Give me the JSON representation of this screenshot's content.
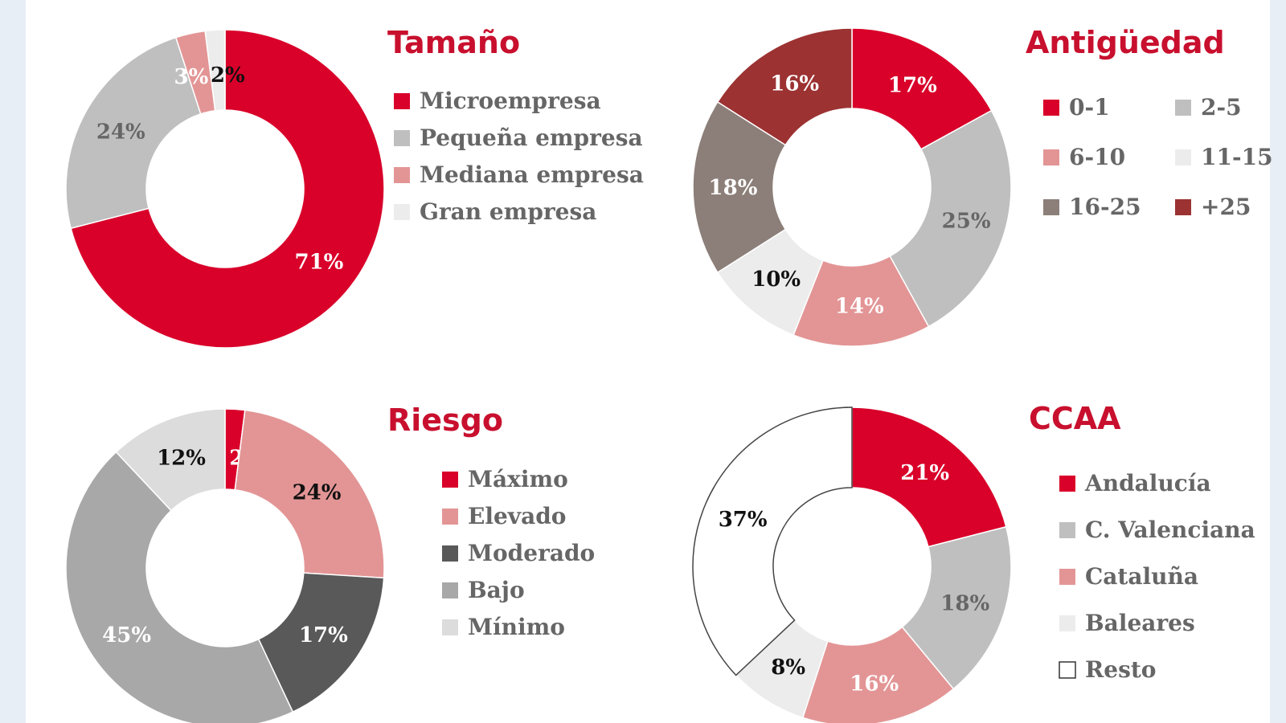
{
  "colors": {
    "red": "#d9002a",
    "lightgray": "#bfbfbf",
    "pink": "#e39595",
    "verylight": "#ececec",
    "taupe": "#8c7f79",
    "darkred": "#9c3232",
    "darkgray": "#595959",
    "midgray": "#a8a8a8",
    "minimo": "#dcdcdc",
    "white": "#ffffff",
    "title": "#c8102e",
    "legendtext": "#666666"
  },
  "chart_data": [
    {
      "id": "tamano",
      "type": "pie",
      "title": "Tamaño",
      "categories": [
        "Microempresa",
        "Pequeña empresa",
        "Mediana empresa",
        "Gran empresa"
      ],
      "values": [
        71,
        24,
        3,
        2
      ],
      "labels": [
        "71%",
        "24%",
        "3%",
        "2%"
      ],
      "color_keys": [
        "red",
        "lightgray",
        "pink",
        "verylight"
      ],
      "label_color_keys": [
        "white",
        "legendtext",
        "white",
        "black"
      ],
      "legend_layout": "single-column"
    },
    {
      "id": "antiguedad",
      "type": "pie",
      "title": "Antigüedad",
      "categories": [
        "0-1",
        "2-5",
        "6-10",
        "11-15",
        "16-25",
        "+25"
      ],
      "values": [
        17,
        25,
        14,
        10,
        18,
        16
      ],
      "labels": [
        "17%",
        "25%",
        "14%",
        "10%",
        "18%",
        "16%"
      ],
      "color_keys": [
        "red",
        "lightgray",
        "pink",
        "verylight",
        "taupe",
        "darkred"
      ],
      "label_color_keys": [
        "white",
        "legendtext",
        "white",
        "black",
        "white",
        "white"
      ],
      "legend_layout": "two-column"
    },
    {
      "id": "riesgo",
      "type": "pie",
      "title": "Riesgo",
      "categories": [
        "Máximo",
        "Elevado",
        "Moderado",
        "Bajo",
        "Mínimo"
      ],
      "values": [
        2,
        24,
        17,
        45,
        12
      ],
      "labels": [
        "2%",
        "24%",
        "17%",
        "45%",
        "12%"
      ],
      "color_keys": [
        "red",
        "pink",
        "darkgray",
        "midgray",
        "minimo"
      ],
      "label_color_keys": [
        "white",
        "black",
        "white",
        "white",
        "black"
      ],
      "legend_layout": "single-column"
    },
    {
      "id": "ccaa",
      "type": "pie",
      "title": "CCAA",
      "categories": [
        "Andalucía",
        "C. Valenciana",
        "Cataluña",
        "Baleares",
        "Resto"
      ],
      "values": [
        21,
        18,
        16,
        8,
        37
      ],
      "labels": [
        "21%",
        "18%",
        "16%",
        "8%",
        "37%"
      ],
      "color_keys": [
        "red",
        "lightgray",
        "pink",
        "verylight",
        "white"
      ],
      "label_color_keys": [
        "white",
        "legendtext",
        "white",
        "black",
        "black"
      ],
      "legend_layout": "single-column"
    }
  ]
}
